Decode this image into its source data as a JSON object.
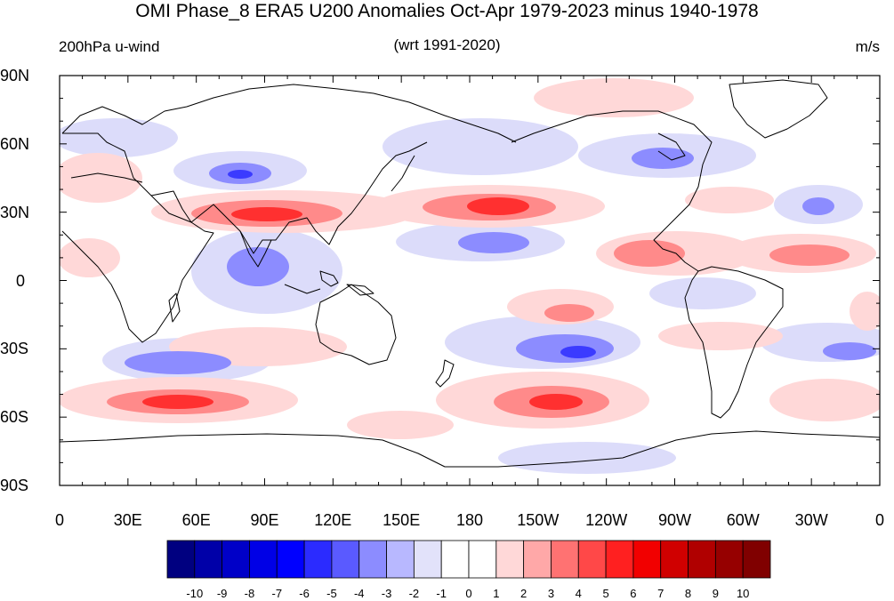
{
  "title": "OMI Phase_8 ERA5 U200 Anomalies Oct-Apr 1979-2023 minus 1940-1978",
  "subtitle_left": "200hPa u-wind",
  "subtitle_center": "(wrt 1991-2020)",
  "subtitle_right": "m/s",
  "lat_labels": [
    "90N",
    "60N",
    "30N",
    "0",
    "30S",
    "60S",
    "90S"
  ],
  "lon_labels": [
    "0",
    "30E",
    "60E",
    "90E",
    "120E",
    "150E",
    "180",
    "150W",
    "120W",
    "90W",
    "60W",
    "30W",
    "0"
  ],
  "colorbar": {
    "labels": [
      "-10",
      "-9",
      "-8",
      "-7",
      "-6",
      "-5",
      "-4",
      "-3",
      "-2",
      "-1",
      "0",
      "1",
      "2",
      "3",
      "4",
      "5",
      "6",
      "7",
      "8",
      "9",
      "10"
    ],
    "colors": [
      "#000080",
      "#0000a8",
      "#0000c8",
      "#0000e6",
      "#0000ff",
      "#2b2bff",
      "#5a5aff",
      "#8c8cff",
      "#b8b8ff",
      "#e2e2fa",
      "#ffffff",
      "#ffffff",
      "#ffd8d8",
      "#ffa8a8",
      "#ff7272",
      "#ff4848",
      "#ff2020",
      "#f20000",
      "#d00000",
      "#b00000",
      "#960000",
      "#800000"
    ]
  },
  "colors": {
    "neg_strong": "#3b3bff",
    "neg_mid": "#8c8cff",
    "neg_light": "#dcdcfa",
    "pos_light": "#ffd8d8",
    "pos_mid": "#ff8a8a",
    "pos_strong": "#ff3030"
  }
}
